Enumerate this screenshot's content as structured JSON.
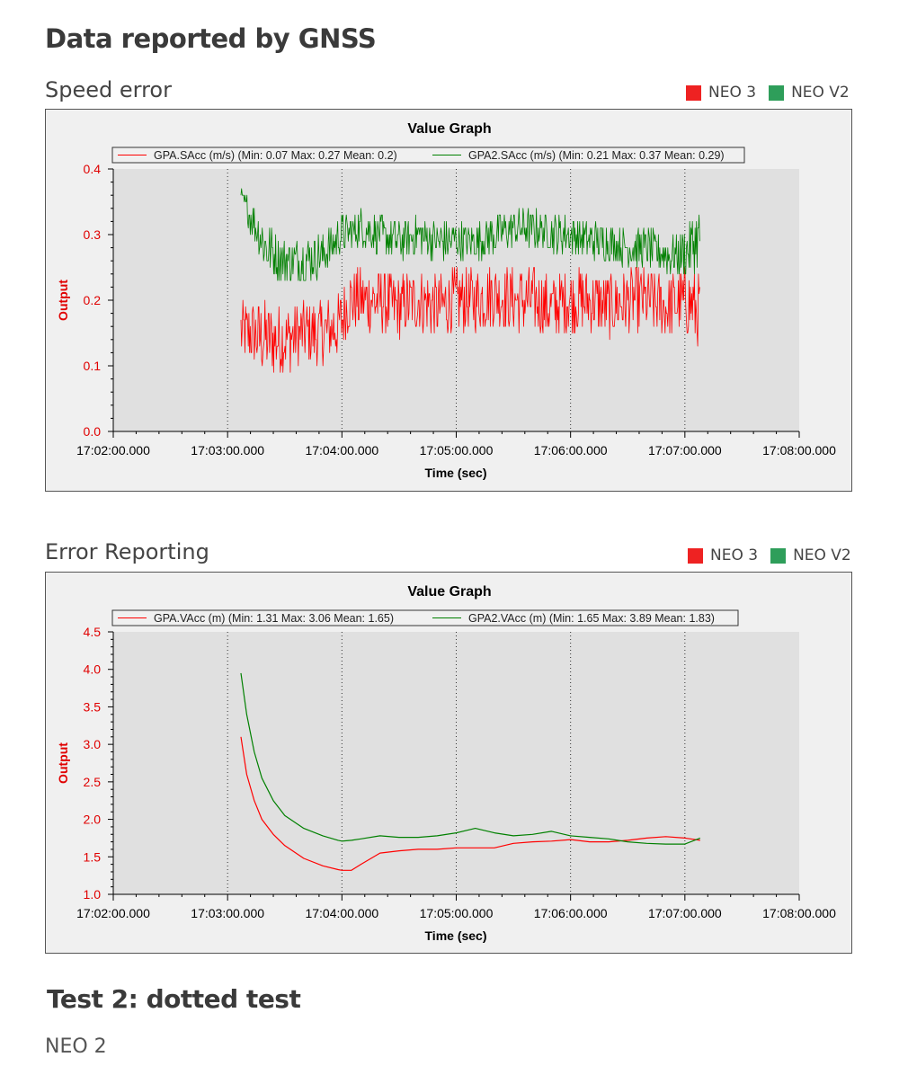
{
  "page": {
    "heading": "Data reported by GNSS",
    "test_heading": "Test 2: dotted test",
    "device_label": "NEO  2"
  },
  "colors": {
    "neo3": "#ee2222",
    "neov2": "#2e9e5a",
    "series1": "#ff0000",
    "series2": "#008000"
  },
  "sections": [
    {
      "title": "Speed error",
      "legend": [
        {
          "label": "NEO 3",
          "color": "#ee2222"
        },
        {
          "label": "NEO V2",
          "color": "#2e9e5a"
        }
      ]
    },
    {
      "title": "Error Reporting",
      "legend": [
        {
          "label": "NEO 3",
          "color": "#ee2222"
        },
        {
          "label": "NEO V2",
          "color": "#2e9e5a"
        }
      ]
    }
  ],
  "chart_data": [
    {
      "type": "line",
      "title": "Value Graph",
      "xlabel": "Time (sec)",
      "ylabel": "Output",
      "x_ticks": [
        "17:02:00.000",
        "17:03:00.000",
        "17:04:00.000",
        "17:05:00.000",
        "17:06:00.000",
        "17:07:00.000",
        "17:08:00.000"
      ],
      "y_ticks": [
        "0.0",
        "0.1",
        "0.2",
        "0.3",
        "0.4"
      ],
      "ylim": [
        0,
        0.4
      ],
      "xlim_seconds": [
        0,
        360
      ],
      "legend_location": "top",
      "series": [
        {
          "name": "GPA.SAcc (m/s) (Min: 0.07 Max: 0.27 Mean: 0.2)",
          "color": "#ff0000",
          "noisy": true,
          "x_seconds": [
            67,
            72,
            80,
            90,
            100,
            110,
            118,
            124,
            130,
            140,
            150,
            160,
            170,
            180,
            190,
            200,
            210,
            220,
            230,
            240,
            250,
            260,
            270,
            280,
            290,
            300,
            308
          ],
          "values": [
            0.15,
            0.15,
            0.14,
            0.14,
            0.15,
            0.15,
            0.16,
            0.2,
            0.2,
            0.2,
            0.19,
            0.2,
            0.19,
            0.2,
            0.2,
            0.21,
            0.2,
            0.2,
            0.19,
            0.2,
            0.2,
            0.19,
            0.2,
            0.2,
            0.19,
            0.2,
            0.18
          ],
          "spread": [
            0.05,
            0.05,
            0.06,
            0.05,
            0.05,
            0.05,
            0.05,
            0.05,
            0.05,
            0.05,
            0.05,
            0.05,
            0.05,
            0.05,
            0.05,
            0.05,
            0.05,
            0.05,
            0.05,
            0.05,
            0.05,
            0.05,
            0.05,
            0.05,
            0.05,
            0.05,
            0.06
          ]
        },
        {
          "name": "GPA2.SAcc (m/s) (Min: 0.21 Max: 0.37 Mean: 0.29)",
          "color": "#008000",
          "noisy": true,
          "x_seconds": [
            67,
            72,
            80,
            90,
            100,
            110,
            120,
            130,
            140,
            150,
            160,
            170,
            180,
            190,
            200,
            210,
            220,
            230,
            240,
            250,
            260,
            270,
            280,
            290,
            300,
            308
          ],
          "values": [
            0.36,
            0.33,
            0.28,
            0.26,
            0.26,
            0.27,
            0.3,
            0.31,
            0.3,
            0.29,
            0.3,
            0.29,
            0.29,
            0.29,
            0.3,
            0.31,
            0.31,
            0.3,
            0.3,
            0.29,
            0.29,
            0.28,
            0.28,
            0.27,
            0.27,
            0.3
          ],
          "spread": [
            0.01,
            0.03,
            0.04,
            0.035,
            0.035,
            0.035,
            0.03,
            0.03,
            0.03,
            0.03,
            0.03,
            0.03,
            0.03,
            0.03,
            0.03,
            0.03,
            0.03,
            0.03,
            0.03,
            0.03,
            0.03,
            0.03,
            0.03,
            0.03,
            0.04,
            0.05
          ]
        }
      ]
    },
    {
      "type": "line",
      "title": "Value Graph",
      "xlabel": "Time (sec)",
      "ylabel": "Output",
      "x_ticks": [
        "17:02:00.000",
        "17:03:00.000",
        "17:04:00.000",
        "17:05:00.000",
        "17:06:00.000",
        "17:07:00.000",
        "17:08:00.000"
      ],
      "y_ticks": [
        "1.0",
        "1.5",
        "2.0",
        "2.5",
        "3.0",
        "3.5",
        "4.0",
        "4.5"
      ],
      "ylim": [
        1.0,
        4.5
      ],
      "xlim_seconds": [
        0,
        360
      ],
      "legend_location": "top",
      "series": [
        {
          "name": "GPA.VAcc (m) (Min: 1.31 Max: 3.06 Mean: 1.65)",
          "color": "#ff0000",
          "noisy": false,
          "x_seconds": [
            67,
            70,
            74,
            78,
            84,
            90,
            100,
            110,
            118,
            120,
            125,
            130,
            140,
            150,
            160,
            170,
            180,
            190,
            200,
            210,
            220,
            230,
            240,
            250,
            260,
            270,
            280,
            290,
            300,
            308
          ],
          "values": [
            3.1,
            2.6,
            2.25,
            2.0,
            1.8,
            1.65,
            1.48,
            1.38,
            1.33,
            1.32,
            1.32,
            1.4,
            1.55,
            1.58,
            1.6,
            1.6,
            1.62,
            1.62,
            1.62,
            1.68,
            1.7,
            1.71,
            1.73,
            1.7,
            1.7,
            1.72,
            1.75,
            1.77,
            1.75,
            1.72
          ]
        },
        {
          "name": "GPA2.VAcc (m) (Min: 1.65 Max: 3.89 Mean: 1.83)",
          "color": "#008000",
          "noisy": false,
          "x_seconds": [
            67,
            70,
            74,
            78,
            84,
            90,
            100,
            110,
            118,
            120,
            125,
            130,
            140,
            150,
            160,
            170,
            180,
            190,
            200,
            210,
            220,
            230,
            240,
            250,
            260,
            270,
            280,
            290,
            300,
            308
          ],
          "values": [
            3.95,
            3.4,
            2.9,
            2.55,
            2.25,
            2.05,
            1.88,
            1.78,
            1.72,
            1.71,
            1.72,
            1.74,
            1.78,
            1.76,
            1.76,
            1.78,
            1.82,
            1.88,
            1.82,
            1.78,
            1.8,
            1.84,
            1.78,
            1.76,
            1.74,
            1.7,
            1.68,
            1.67,
            1.67,
            1.75
          ]
        }
      ]
    }
  ]
}
